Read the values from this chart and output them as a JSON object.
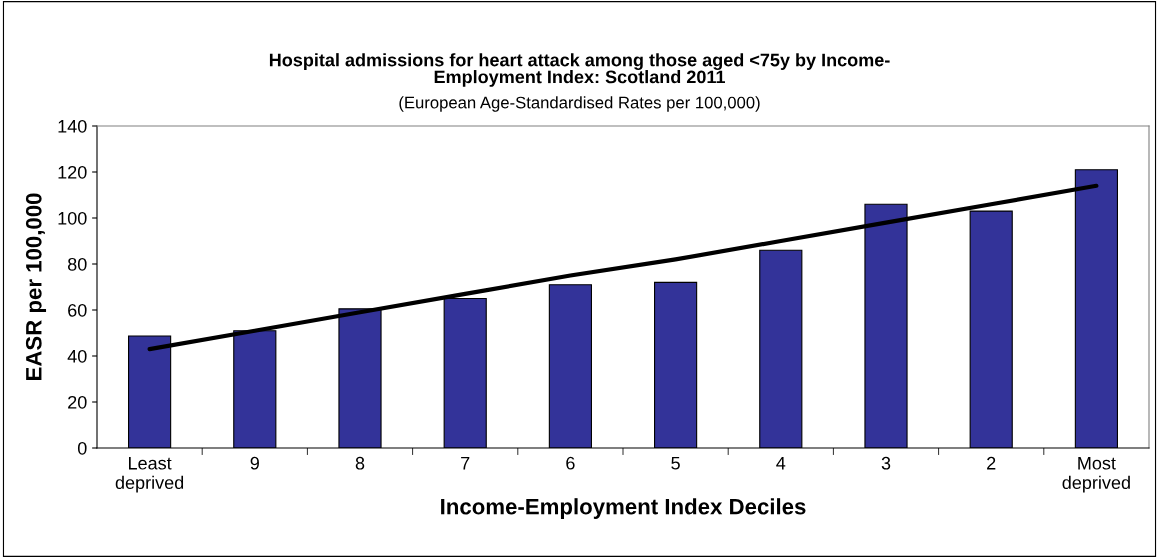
{
  "chart_data": {
    "type": "bar",
    "title": "Hospital admissions for heart attack among those aged <75y by Income-\nEmployment Index: Scotland 2011",
    "subtitle": "(European Age-Standardised Rates per 100,000)",
    "xlabel": "Income-Employment Index Deciles",
    "ylabel": "EASR per 100,000",
    "categories": [
      "Least\ndeprived",
      "9",
      "8",
      "7",
      "6",
      "5",
      "4",
      "3",
      "2",
      "Most\ndeprived"
    ],
    "series": [
      {
        "color": "#333399",
        "values": [
          48.7,
          51,
          60.5,
          65,
          71,
          72,
          86,
          106,
          103,
          121
        ]
      },
      {
        "type": "line",
        "color": "#000000",
        "values": [
          43,
          51,
          59,
          67,
          75,
          82,
          90,
          98,
          106,
          114
        ]
      }
    ],
    "ylim": [
      0,
      140
    ],
    "yticks": [
      0,
      20,
      40,
      60,
      80,
      100,
      120,
      140
    ],
    "grid": false,
    "legend": false,
    "marker": "none",
    "line_style": "solid"
  }
}
